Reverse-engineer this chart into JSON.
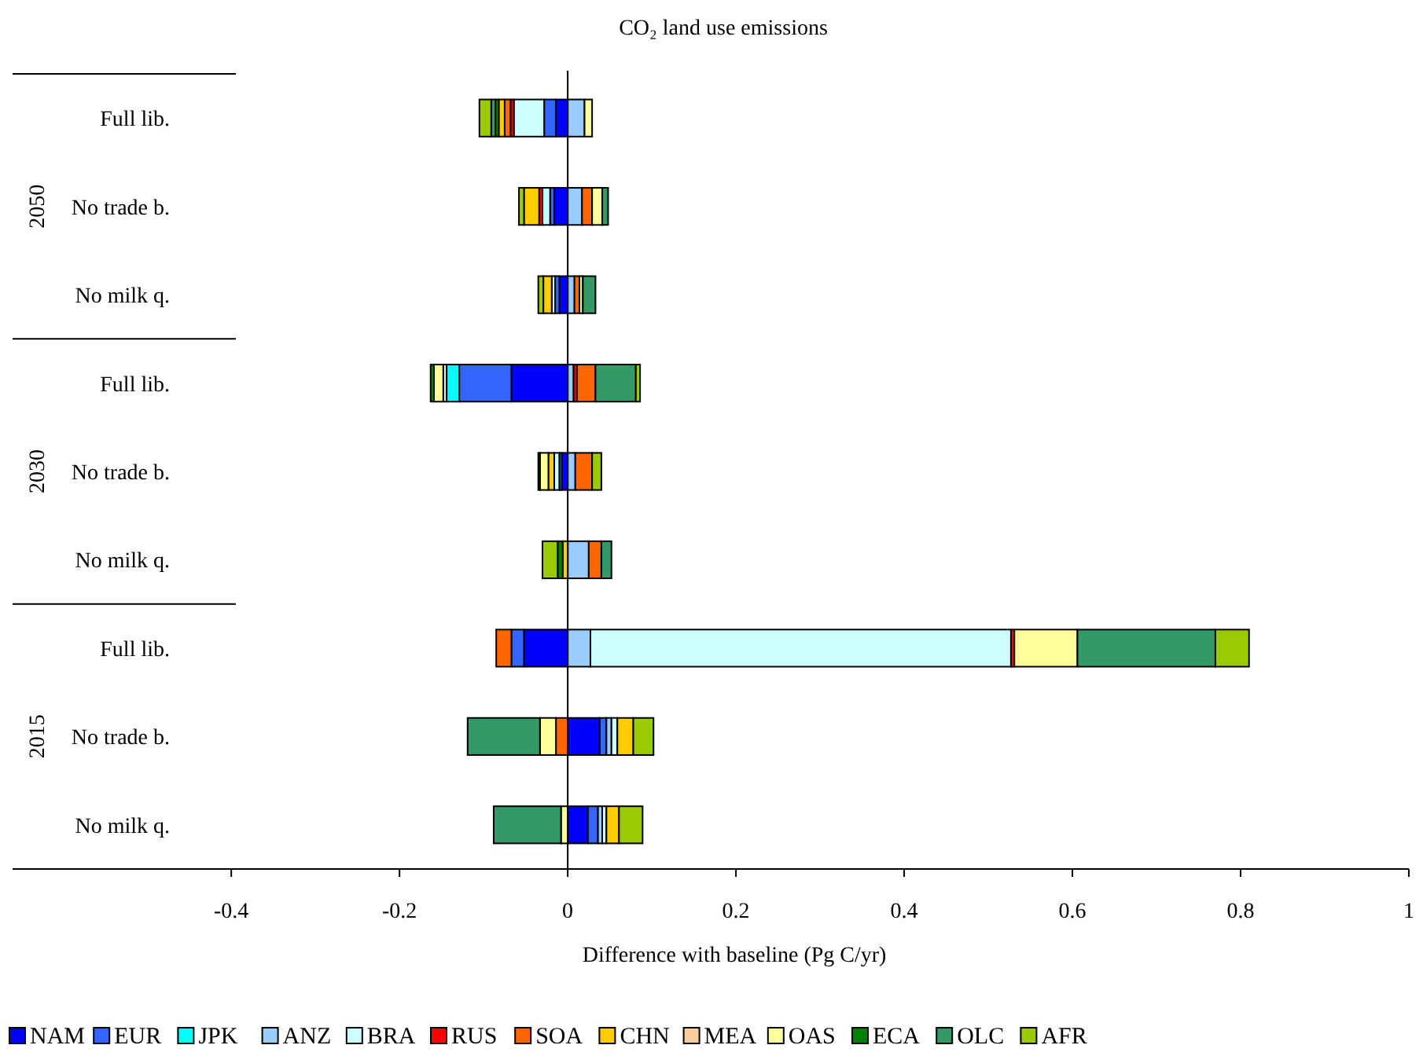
{
  "chart_data": {
    "type": "bar",
    "orientation": "horizontal",
    "stacked": true,
    "title": "CO₂ land use emissions",
    "xlabel": "Difference with baseline (Pg C/yr)",
    "categories": [
      "Full lib.",
      "No trade b.",
      "No milk q.",
      "Full lib.",
      "No trade b.",
      "No milk q.",
      "Full lib.",
      "No trade b.",
      "No milk q."
    ],
    "annotations": [
      "2050",
      "2030",
      "2015"
    ],
    "xlim": [
      -0.66,
      1
    ],
    "xticks": [
      -0.4,
      -0.2,
      0,
      0.2,
      0.4,
      0.6,
      0.8,
      1
    ],
    "legend": "bottom",
    "series": [
      {
        "name": "NAM",
        "color": "#0000ff",
        "values": [
          -0.014,
          -0.016,
          -0.01,
          -0.067,
          -0.007,
          null,
          -0.052,
          0.038,
          0.024
        ]
      },
      {
        "name": "EUR",
        "color": "#3366ff",
        "values": [
          -0.014,
          -0.005,
          -0.005,
          -0.062,
          -0.003,
          null,
          -0.015,
          0.008,
          0.012
        ]
      },
      {
        "name": "JPK",
        "color": "#00ffff",
        "values": [
          0,
          0,
          0,
          -0.015,
          0,
          0,
          0,
          0,
          0
        ]
      },
      {
        "name": "ANZ",
        "color": "#99ccff",
        "values": [
          0.02,
          0.017,
          0.008,
          0.007,
          0.009,
          0.025,
          0.027,
          0.006,
          0.005
        ]
      },
      {
        "name": "BRA",
        "color": "#ccffff",
        "values": [
          -0.036,
          -0.009,
          -0.004,
          -0.004,
          -0.006,
          0,
          0.5,
          0.007,
          0.005
        ]
      },
      {
        "name": "RUS",
        "color": "#ff0000",
        "values": [
          -0.004,
          -0.004,
          0,
          0.004,
          0,
          0,
          0.004,
          0,
          0
        ]
      },
      {
        "name": "SOA",
        "color": "#ff6600",
        "values": [
          -0.007,
          0.012,
          0.006,
          0.022,
          0.02,
          0.015,
          -0.018,
          -0.014,
          0
        ]
      },
      {
        "name": "CHN",
        "color": "#ffcc00",
        "values": [
          -0.007,
          -0.018,
          -0.01,
          0,
          -0.007,
          -0.006,
          0,
          0.019,
          0.015
        ]
      },
      {
        "name": "MEA",
        "color": "#ffcc99",
        "values": [
          0,
          0,
          0,
          0,
          0,
          0,
          0,
          0,
          0
        ]
      },
      {
        "name": "OAS",
        "color": "#ffff99",
        "values": [
          0.009,
          0.012,
          0.004,
          -0.011,
          -0.01,
          0,
          0.075,
          -0.019,
          -0.008
        ]
      },
      {
        "name": "ECA",
        "color": "#008000",
        "values": [
          -0.004,
          0,
          0,
          -0.004,
          -0.002,
          -0.006,
          0,
          0,
          0
        ]
      },
      {
        "name": "OLC",
        "color": "#339966",
        "values": [
          -0.005,
          0.007,
          0.015,
          0.048,
          0,
          0.012,
          0.164,
          -0.086,
          -0.08
        ]
      },
      {
        "name": "AFR",
        "color": "#99cc00",
        "values": [
          -0.014,
          -0.006,
          -0.006,
          0.005,
          0.011,
          -0.018,
          0.04,
          0.024,
          0.028
        ]
      }
    ]
  }
}
